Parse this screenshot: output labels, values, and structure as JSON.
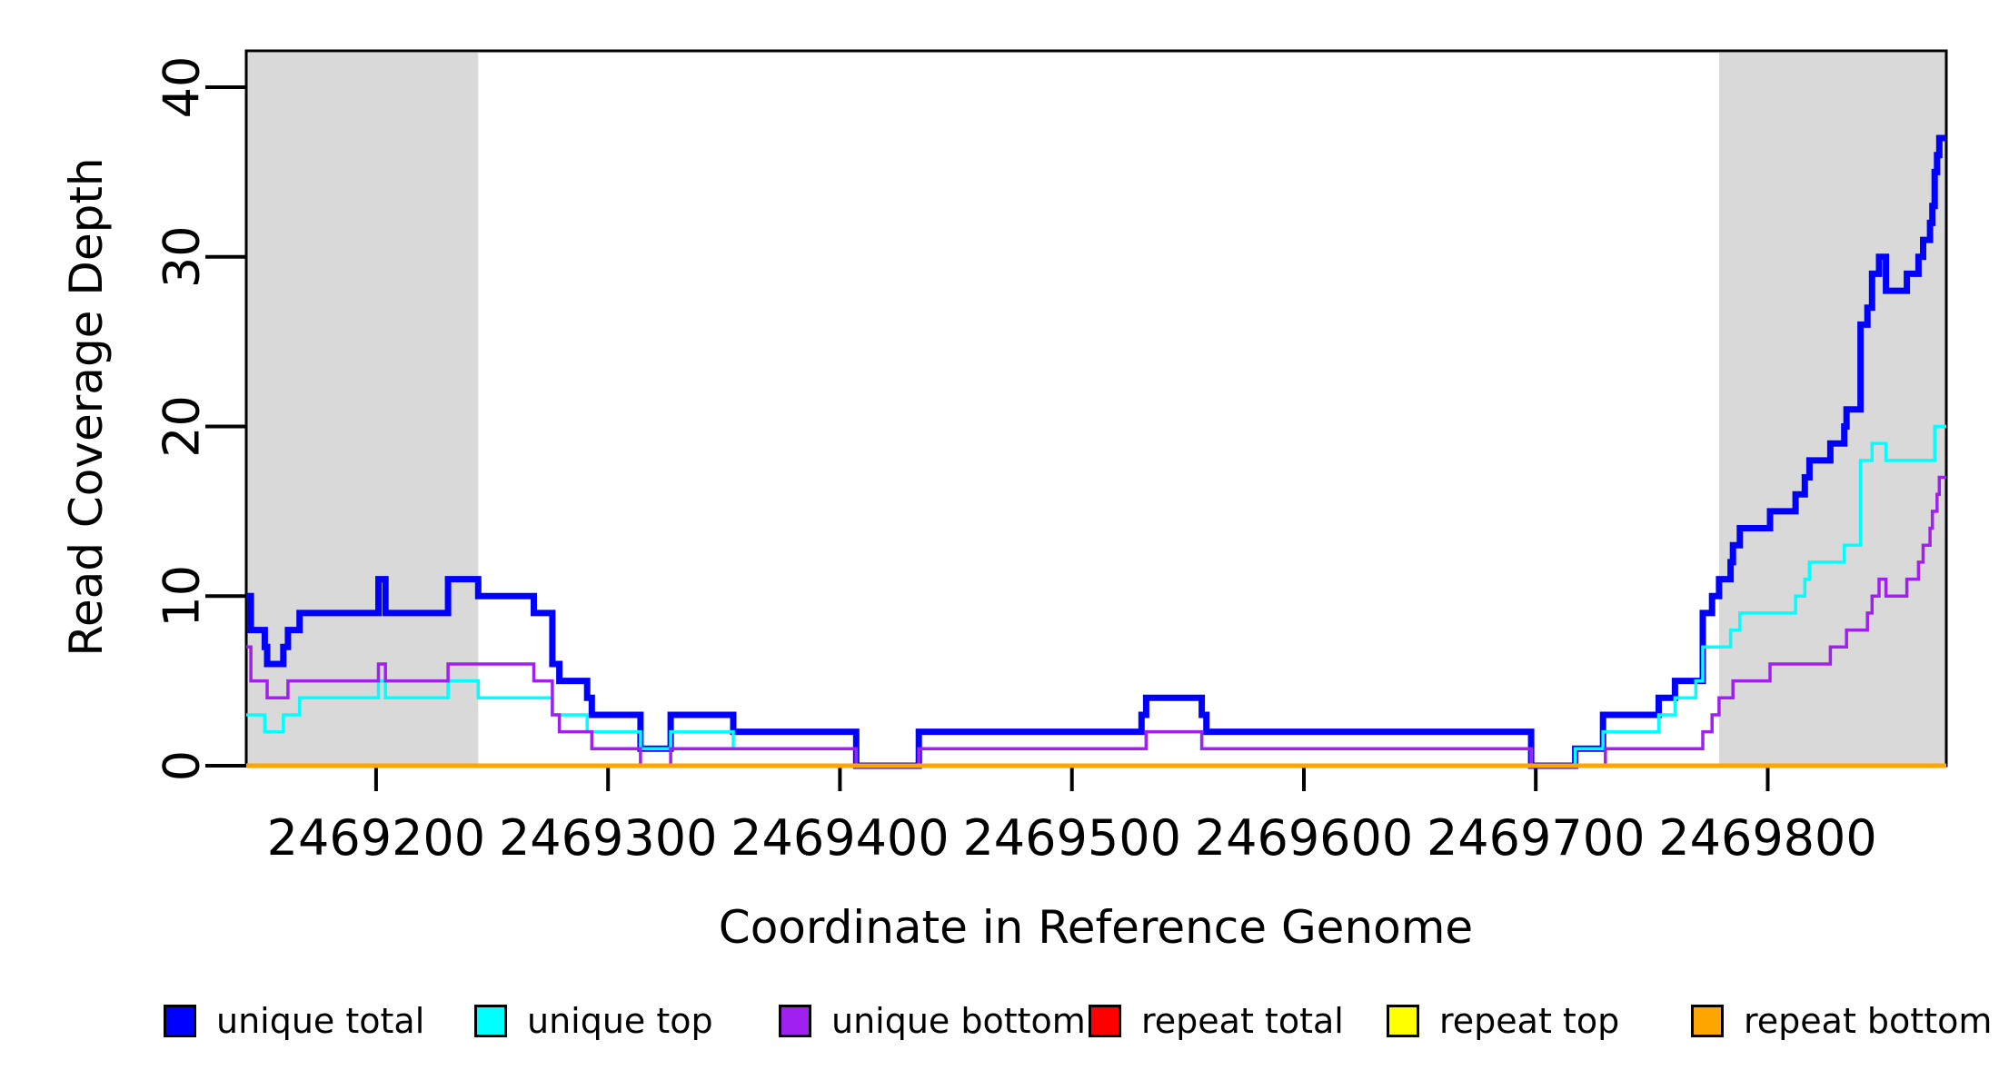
{
  "axes": {
    "x_label": "Coordinate in Reference Genome",
    "y_label": "Read Coverage Depth"
  },
  "legend": [
    {
      "label": "unique total",
      "color": "#0000FF"
    },
    {
      "label": "unique top",
      "color": "#00FFFF"
    },
    {
      "label": "unique bottom",
      "color": "#A020F0"
    },
    {
      "label": "repeat total",
      "color": "#FF0000"
    },
    {
      "label": "repeat top",
      "color": "#FFFF00"
    },
    {
      "label": "repeat bottom",
      "color": "#FFA500"
    }
  ],
  "chart_data": {
    "type": "line",
    "subtype": "step-post",
    "title": "",
    "xlabel": "Coordinate in Reference Genome",
    "ylabel": "Read Coverage Depth",
    "xlim": [
      2469144,
      2469877
    ],
    "ylim": [
      0,
      42
    ],
    "grid": false,
    "legend_position": "bottom",
    "x_ticks": [
      2469200,
      2469300,
      2469400,
      2469500,
      2469600,
      2469700,
      2469800
    ],
    "x_tick_labels": [
      "2469200",
      "2469300",
      "2469400",
      "2469500",
      "2469600",
      "2469700",
      "2469800"
    ],
    "y_ticks": [
      0,
      10,
      20,
      30,
      40
    ],
    "y_tick_labels": [
      "0",
      "10",
      "20",
      "30",
      "40"
    ],
    "highlight_color": "#D9D9D9",
    "highlight_regions": [
      {
        "from": 2469144,
        "to": 2469244
      },
      {
        "from": 2469779,
        "to": 2469877
      }
    ],
    "series": [
      {
        "name": "unique total",
        "color": "#0000FF",
        "width": 7,
        "steps": [
          [
            2469144,
            10
          ],
          [
            2469146,
            8
          ],
          [
            2469152,
            7
          ],
          [
            2469153,
            6
          ],
          [
            2469160,
            7
          ],
          [
            2469162,
            8
          ],
          [
            2469167,
            9
          ],
          [
            2469201,
            11
          ],
          [
            2469204,
            9
          ],
          [
            2469231,
            11
          ],
          [
            2469244,
            10
          ],
          [
            2469268,
            9
          ],
          [
            2469276,
            6
          ],
          [
            2469279,
            5
          ],
          [
            2469291,
            4
          ],
          [
            2469293,
            3
          ],
          [
            2469314,
            1
          ],
          [
            2469327,
            3
          ],
          [
            2469354,
            2
          ],
          [
            2469407,
            0
          ],
          [
            2469434,
            2
          ],
          [
            2469530,
            3
          ],
          [
            2469532,
            4
          ],
          [
            2469556,
            3
          ],
          [
            2469558,
            2
          ],
          [
            2469698,
            0
          ],
          [
            2469717,
            1
          ],
          [
            2469729,
            3
          ],
          [
            2469753,
            4
          ],
          [
            2469760,
            5
          ],
          [
            2469772,
            9
          ],
          [
            2469776,
            10
          ],
          [
            2469779,
            11
          ],
          [
            2469784,
            12
          ],
          [
            2469785,
            13
          ],
          [
            2469788,
            14
          ],
          [
            2469801,
            15
          ],
          [
            2469812,
            16
          ],
          [
            2469816,
            17
          ],
          [
            2469818,
            18
          ],
          [
            2469827,
            19
          ],
          [
            2469833,
            20
          ],
          [
            2469834,
            21
          ],
          [
            2469840,
            26
          ],
          [
            2469843,
            27
          ],
          [
            2469845,
            29
          ],
          [
            2469848,
            30
          ],
          [
            2469851,
            28
          ],
          [
            2469860,
            29
          ],
          [
            2469865,
            30
          ],
          [
            2469867,
            31
          ],
          [
            2469870,
            32
          ],
          [
            2469871,
            33
          ],
          [
            2469872,
            35
          ],
          [
            2469873,
            36
          ],
          [
            2469874,
            37
          ]
        ]
      },
      {
        "name": "unique top",
        "color": "#00FFFF",
        "width": 3.5,
        "steps": [
          [
            2469144,
            3
          ],
          [
            2469152,
            2
          ],
          [
            2469160,
            3
          ],
          [
            2469167,
            4
          ],
          [
            2469201,
            5
          ],
          [
            2469204,
            4
          ],
          [
            2469231,
            5
          ],
          [
            2469244,
            4
          ],
          [
            2469276,
            3
          ],
          [
            2469291,
            2
          ],
          [
            2469314,
            1
          ],
          [
            2469327,
            2
          ],
          [
            2469354,
            1
          ],
          [
            2469407,
            0
          ],
          [
            2469434,
            1
          ],
          [
            2469532,
            2
          ],
          [
            2469556,
            1
          ],
          [
            2469698,
            0
          ],
          [
            2469717,
            1
          ],
          [
            2469729,
            2
          ],
          [
            2469753,
            3
          ],
          [
            2469760,
            4
          ],
          [
            2469769,
            5
          ],
          [
            2469772,
            7
          ],
          [
            2469784,
            8
          ],
          [
            2469788,
            9
          ],
          [
            2469812,
            10
          ],
          [
            2469816,
            11
          ],
          [
            2469818,
            12
          ],
          [
            2469833,
            13
          ],
          [
            2469840,
            18
          ],
          [
            2469845,
            19
          ],
          [
            2469851,
            18
          ],
          [
            2469872,
            20
          ]
        ]
      },
      {
        "name": "unique bottom",
        "color": "#A020F0",
        "width": 3.5,
        "steps": [
          [
            2469144,
            7
          ],
          [
            2469146,
            5
          ],
          [
            2469153,
            4
          ],
          [
            2469162,
            5
          ],
          [
            2469201,
            6
          ],
          [
            2469204,
            5
          ],
          [
            2469231,
            6
          ],
          [
            2469268,
            5
          ],
          [
            2469276,
            3
          ],
          [
            2469279,
            2
          ],
          [
            2469293,
            1
          ],
          [
            2469314,
            0
          ],
          [
            2469327,
            1
          ],
          [
            2469407,
            0
          ],
          [
            2469434,
            1
          ],
          [
            2469532,
            2
          ],
          [
            2469556,
            1
          ],
          [
            2469698,
            0
          ],
          [
            2469730,
            1
          ],
          [
            2469772,
            2
          ],
          [
            2469776,
            3
          ],
          [
            2469779,
            4
          ],
          [
            2469785,
            5
          ],
          [
            2469801,
            6
          ],
          [
            2469827,
            7
          ],
          [
            2469834,
            8
          ],
          [
            2469843,
            9
          ],
          [
            2469845,
            10
          ],
          [
            2469848,
            11
          ],
          [
            2469851,
            10
          ],
          [
            2469860,
            11
          ],
          [
            2469865,
            12
          ],
          [
            2469867,
            13
          ],
          [
            2469870,
            14
          ],
          [
            2469871,
            15
          ],
          [
            2469873,
            16
          ],
          [
            2469874,
            17
          ]
        ]
      },
      {
        "name": "repeat total",
        "color": "#FF0000",
        "width": 3,
        "steps": [
          [
            2469144,
            0
          ]
        ]
      },
      {
        "name": "repeat top",
        "color": "#FFFF00",
        "width": 3,
        "steps": [
          [
            2469144,
            0
          ]
        ]
      },
      {
        "name": "repeat bottom",
        "color": "#FFA500",
        "width": 5,
        "steps": [
          [
            2469144,
            0
          ]
        ]
      }
    ]
  }
}
